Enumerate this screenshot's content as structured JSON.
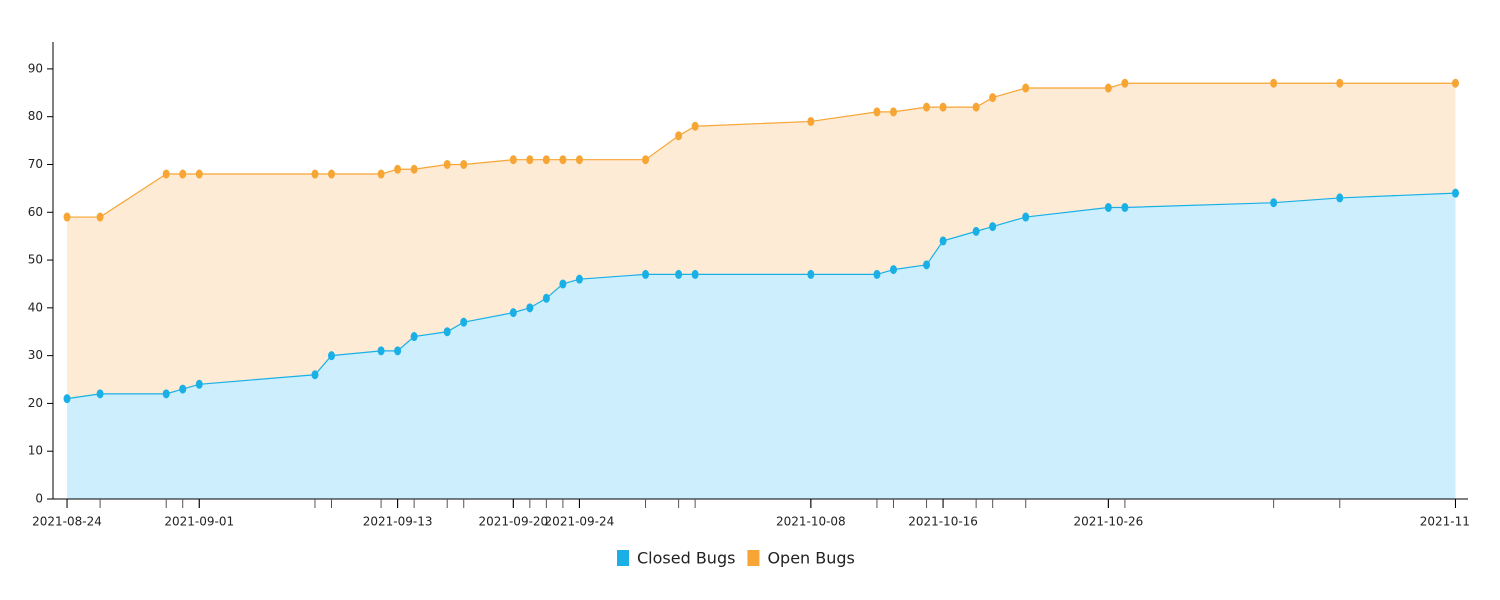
{
  "chart_data": {
    "type": "stacked-area",
    "x": [
      "2021-08-24",
      "2021-08-26",
      "2021-08-30",
      "2021-08-31",
      "2021-09-01",
      "2021-09-08",
      "2021-09-09",
      "2021-09-12",
      "2021-09-13",
      "2021-09-14",
      "2021-09-16",
      "2021-09-17",
      "2021-09-20",
      "2021-09-21",
      "2021-09-22",
      "2021-09-23",
      "2021-09-24",
      "2021-09-28",
      "2021-09-30",
      "2021-10-01",
      "2021-10-08",
      "2021-10-12",
      "2021-10-13",
      "2021-10-15",
      "2021-10-16",
      "2021-10-18",
      "2021-10-19",
      "2021-10-21",
      "2021-10-26",
      "2021-10-27",
      "2021-11-05",
      "2021-11-09",
      "2021-11-16"
    ],
    "series": [
      {
        "name": "Closed Bugs",
        "color": "#1ab0e6",
        "fill": "#cdeffd",
        "values": [
          21,
          22,
          22,
          23,
          24,
          26,
          30,
          31,
          31,
          34,
          35,
          37,
          39,
          40,
          42,
          45,
          46,
          47,
          47,
          47,
          47,
          47,
          48,
          49,
          54,
          56,
          57,
          59,
          61,
          61,
          62,
          63,
          64
        ]
      },
      {
        "name": "Open Bugs",
        "color": "#f7a534",
        "fill": "#fdebd6",
        "values": [
          38,
          37,
          46,
          45,
          44,
          42,
          38,
          37,
          38,
          35,
          35,
          33,
          32,
          31,
          29,
          26,
          25,
          24,
          29,
          31,
          32,
          34,
          33,
          33,
          28,
          26,
          27,
          27,
          25,
          26,
          25,
          24,
          23
        ]
      }
    ],
    "xlim": [
      "2021-08-23",
      "2021-11-17"
    ],
    "xticks": [
      {
        "value": "2021-08-24",
        "label": "2021-08-24"
      },
      {
        "value": "2021-09-01",
        "label": "2021-09-01"
      },
      {
        "value": "2021-09-13",
        "label": "2021-09-13"
      },
      {
        "value": "2021-09-20",
        "label": "2021-09-20"
      },
      {
        "value": "2021-09-24",
        "label": "2021-09-24"
      },
      {
        "value": "2021-10-08",
        "label": "2021-10-08"
      },
      {
        "value": "2021-10-16",
        "label": "2021-10-16"
      },
      {
        "value": "2021-10-26",
        "label": "2021-10-26"
      },
      {
        "value": "2021-11-16",
        "label": "2021-11"
      }
    ],
    "ylim": [
      0,
      95
    ],
    "yticks": [
      0,
      10,
      20,
      30,
      40,
      50,
      60,
      70,
      80,
      90
    ],
    "legend": "bottom"
  }
}
